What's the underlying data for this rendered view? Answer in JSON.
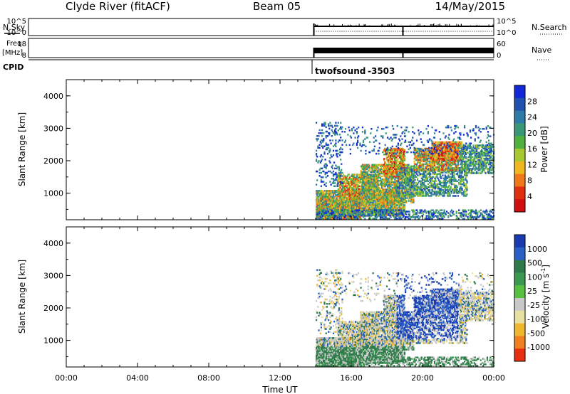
{
  "header": {
    "station": "Clyde River (fitACF)",
    "beam": "Beam 05",
    "date": "14/May/2015"
  },
  "nsky_panel": {
    "left_label": "N.Sky",
    "right_label": "N.Search",
    "left_ticks": [
      "10^5",
      "10^0"
    ],
    "right_ticks": [
      "10^5",
      "10^0"
    ]
  },
  "freq_panel": {
    "left_label_1": "Freq.",
    "left_label_2": "[MHz]",
    "right_label": "Nave",
    "left_ticks": [
      "18",
      "8"
    ],
    "right_ticks": [
      "60",
      "0"
    ]
  },
  "cpid": {
    "label": "CPID",
    "program": "twofsound",
    "value": "-3503"
  },
  "chart_data": [
    {
      "type": "heatmap",
      "ylabel": "Slant Range [km]",
      "colorbar_label": "Power [dB]",
      "colorbar_ticks": [
        "28",
        "24",
        "20",
        "16",
        "12",
        "8",
        "4"
      ],
      "yticks": [
        "4000",
        "3000",
        "2000",
        "1000"
      ],
      "ylim": [
        180,
        4500
      ],
      "xlim_hours": [
        0,
        24
      ],
      "colors": [
        "#1028d8",
        "#2050b0",
        "#2e7aa8",
        "#3a9878",
        "#50b040",
        "#a8c830",
        "#f0b820",
        "#f07818",
        "#e03010",
        "#d01010"
      ]
    },
    {
      "type": "heatmap",
      "ylabel": "Slant Range [km]",
      "colorbar_label": "Velocity [m s-1]",
      "colorbar_ticks": [
        "1000",
        "500",
        "100",
        "25",
        "-25",
        "-100",
        "-500",
        "-1000"
      ],
      "yticks": [
        "4000",
        "3000",
        "2000",
        "1000"
      ],
      "ylim": [
        180,
        4500
      ],
      "xlim_hours": [
        0,
        24
      ],
      "colors": [
        "#1a3ab0",
        "#2860c8",
        "#2e7a4a",
        "#3c9850",
        "#58c040",
        "#c8c8c8",
        "#e8e0a0",
        "#f0b830",
        "#f08020",
        "#e83010"
      ]
    }
  ],
  "xaxis": {
    "ticks": [
      "00:00",
      "04:00",
      "08:00",
      "12:00",
      "16:00",
      "20:00",
      "00:00"
    ],
    "label": "Time UT"
  }
}
